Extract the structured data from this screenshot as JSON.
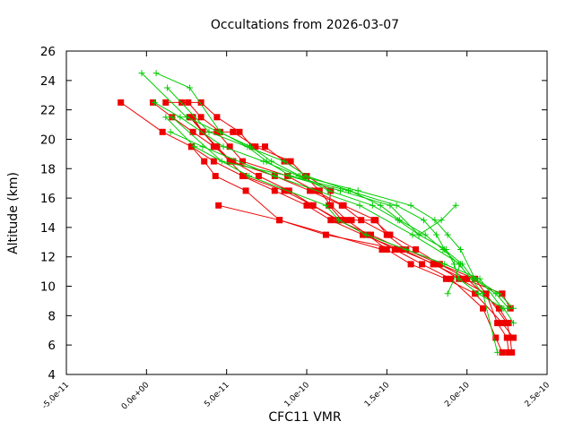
{
  "chart_data": {
    "type": "line",
    "title": "Occultations from 2026-03-07",
    "xlabel": "CFC11 VMR",
    "ylabel": "Altitude (km)",
    "xlim": [
      -5e-11,
      2.5e-10
    ],
    "ylim": [
      4,
      26
    ],
    "x_ticks": [
      -5e-11,
      0,
      5e-11,
      1e-10,
      1.5e-10,
      2e-10,
      2.5e-10
    ],
    "x_tick_labels": [
      "-5.0e-11",
      "0.0e+00",
      "5.0e-11",
      "1.0e-10",
      "1.5e-10",
      "2.0e-10",
      "2.5e-10"
    ],
    "y_ticks": [
      4,
      6,
      8,
      10,
      12,
      14,
      16,
      18,
      20,
      22,
      24,
      26
    ],
    "y_tick_labels": [
      "4",
      "6",
      "8",
      "10",
      "12",
      "14",
      "16",
      "18",
      "20",
      "22",
      "24",
      "26"
    ],
    "grid": false,
    "colors": {
      "red": "#ee0000",
      "green": "#00cc00"
    },
    "series": [
      {
        "name": "red-1",
        "color": "red",
        "marker": "square",
        "x": [
          2.26e-10,
          2.25e-10,
          2.19e-10,
          2.12e-10,
          1.95e-10,
          1.8e-10,
          1.58e-10,
          1.35e-10,
          1.15e-10,
          1e-10,
          8e-11,
          6e-11,
          4.2e-11,
          2.8e-11,
          1e-11,
          -1.6e-11
        ],
        "y": [
          5.5,
          6.5,
          7.5,
          9.5,
          10.5,
          11.5,
          12.5,
          13.5,
          14.5,
          15.5,
          16.5,
          17.5,
          18.5,
          19.5,
          20.5,
          22.5
        ]
      },
      {
        "name": "red-2",
        "color": "red",
        "marker": "square",
        "x": [
          2.22e-10,
          2.18e-10,
          2.1e-10,
          1.9e-10,
          1.72e-10,
          1.55e-10,
          1.37e-10,
          1.2e-10,
          1.04e-10,
          8.9e-11,
          7e-11,
          5.4e-11,
          4.2e-11,
          2.9e-11,
          1.6e-11,
          4e-12
        ],
        "y": [
          5.5,
          6.5,
          8.5,
          10.5,
          11.5,
          12.5,
          13.5,
          14.5,
          15.5,
          16.5,
          17.5,
          18.5,
          19.5,
          20.5,
          21.5,
          22.5
        ]
      },
      {
        "name": "red-3",
        "color": "red",
        "marker": "square",
        "x": [
          2.29e-10,
          2.22e-10,
          2.05e-10,
          1.87e-10,
          1.65e-10,
          1.5e-10,
          1.38e-10,
          1.25e-10,
          1.15e-10,
          1.08e-10,
          9.9e-11,
          9e-11,
          6.8e-11,
          5.4e-11,
          4.6e-11,
          3.4e-11,
          2.6e-11,
          1.2e-11
        ],
        "y": [
          6.5,
          7.5,
          9.5,
          10.5,
          11.5,
          12.5,
          13.5,
          14.5,
          15.5,
          16.5,
          17.5,
          18.5,
          19.5,
          20.5,
          20.5,
          21.5,
          22.5,
          22.5
        ]
      },
      {
        "name": "red-4",
        "color": "red",
        "marker": "square",
        "x": [
          2.28e-10,
          2.27e-10,
          2.25e-10,
          2.05e-10,
          1.83e-10,
          1.68e-10,
          1.52e-10,
          1.42e-10,
          1.28e-10,
          1.22e-10,
          1.14e-10,
          1.15e-10,
          1e-10,
          8.6e-11,
          7.4e-11,
          6.6e-11,
          5.8e-11,
          4.4e-11,
          3.4e-11,
          2.2e-11
        ],
        "y": [
          5.5,
          6.5,
          7.5,
          10.5,
          11.5,
          12.5,
          13.5,
          14.5,
          14.5,
          14.5,
          15.5,
          16.5,
          17.5,
          18.5,
          19.5,
          19.5,
          20.5,
          21.5,
          22.5,
          22.5
        ]
      },
      {
        "name": "red-5",
        "color": "red",
        "marker": "square",
        "x": [
          2.26e-10,
          2.2e-10,
          2e-10,
          1.83e-10,
          1.62e-10,
          1.5e-10,
          1.43e-10,
          1.23e-10,
          1.05e-10,
          8.8e-11,
          6e-11,
          5.2e-11,
          4.4e-11,
          3.5e-11,
          2.9e-11
        ],
        "y": [
          7.5,
          8.5,
          10.5,
          11.5,
          12.5,
          13.5,
          14.5,
          15.5,
          16.5,
          17.5,
          18.5,
          19.5,
          20.5,
          20.5,
          21.5
        ]
      },
      {
        "name": "red-6",
        "color": "red",
        "marker": "square",
        "x": [
          2.27e-10,
          2.22e-10,
          1.98e-10,
          1.79e-10,
          1.6e-10,
          1.4e-10,
          1.19e-10,
          1.04e-10,
          8.6e-11,
          6.1e-11,
          5.2e-11,
          4.3e-11,
          3.5e-11,
          2.8e-11
        ],
        "y": [
          8.5,
          9.5,
          10.5,
          11.5,
          12.5,
          13.5,
          14.5,
          15.5,
          16.5,
          17.5,
          18.5,
          19.5,
          20.5,
          21.5
        ]
      },
      {
        "name": "red-7",
        "color": "red",
        "marker": "square",
        "x": [
          1.51e-10,
          1.34e-10,
          1.22e-10,
          1.02e-10,
          8e-11,
          5.3e-11,
          4.4e-11,
          3.5e-11,
          2.7e-11
        ],
        "y": [
          13.5,
          14.5,
          15.5,
          16.5,
          17.5,
          18.5,
          19.5,
          20.5,
          21.5
        ]
      },
      {
        "name": "red-8",
        "color": "red",
        "marker": "square",
        "x": [
          1.58e-10,
          1.12e-10,
          8.3e-11,
          6.2e-11,
          4.3e-11,
          3.6e-11,
          2.8e-11
        ],
        "y": [
          12.5,
          13.5,
          14.5,
          16.5,
          17.5,
          18.5,
          19.5
        ]
      },
      {
        "name": "red-9",
        "color": "red",
        "marker": "square",
        "x": [
          1.47e-10,
          8.3e-11,
          4.5e-11
        ],
        "y": [
          12.5,
          14.5,
          15.5
        ]
      },
      {
        "name": "green-1",
        "color": "green",
        "marker": "plus",
        "x": [
          2.29e-10,
          2.2e-10,
          2.05e-10,
          1.96e-10,
          1.88e-10,
          1.8e-10,
          1.65e-10,
          1.32e-10,
          9.6e-11,
          7.8e-11,
          6.5e-11,
          2.5e-11,
          -3e-12
        ],
        "y": [
          8.5,
          9.5,
          10.5,
          12.5,
          13.5,
          14.5,
          15.5,
          16.5,
          17.5,
          18.5,
          19.5,
          21.5,
          24.5
        ]
      },
      {
        "name": "green-2",
        "color": "green",
        "marker": "plus",
        "x": [
          2.26e-10,
          2.18e-10,
          2.04e-10,
          1.97e-10,
          1.86e-10,
          1.81e-10,
          1.73e-10,
          1.56e-10,
          1.26e-10,
          9e-11,
          7.5e-11,
          6.3e-11,
          4.6e-11,
          2.7e-11,
          6e-12
        ],
        "y": [
          8.5,
          9.5,
          10.5,
          11.5,
          12.5,
          13.5,
          14.5,
          15.5,
          16.5,
          17.5,
          18.5,
          19.5,
          20.5,
          23.5,
          24.5
        ]
      },
      {
        "name": "green-3",
        "color": "green",
        "marker": "plus",
        "x": [
          2.19e-10,
          2.1e-10,
          1.95e-10,
          1.85e-10,
          1.74e-10,
          1.58e-10,
          1.46e-10,
          1.27e-10,
          1e-10,
          8.6e-11,
          3.9e-11,
          1.3e-11
        ],
        "y": [
          5.5,
          9.5,
          11.5,
          12.5,
          13.5,
          14.5,
          15.5,
          16.5,
          17.5,
          18.5,
          20.5,
          23.5
        ]
      },
      {
        "name": "green-4",
        "color": "green",
        "marker": "plus",
        "x": [
          2.29e-10,
          2.23e-10,
          2.07e-10,
          1.95e-10,
          1.92e-10,
          1.87e-10,
          1.7e-10,
          1.57e-10,
          1.41e-10,
          1.14e-10,
          9.5e-11,
          7.3e-11,
          4.8e-11,
          2.1e-11,
          5e-12
        ],
        "y": [
          7.5,
          8.5,
          9.5,
          10.5,
          11.5,
          12.5,
          13.5,
          14.5,
          15.5,
          16.5,
          17.5,
          18.5,
          19.5,
          21.5,
          22.5
        ]
      },
      {
        "name": "green-5",
        "color": "green",
        "marker": "plus",
        "x": [
          2.22e-10,
          2.08e-10,
          1.86e-10,
          1.62e-10,
          1.37e-10,
          1.2e-10,
          1.12e-10,
          6.4e-11,
          3e-11,
          1.2e-11
        ],
        "y": [
          8.5,
          10.5,
          11.5,
          12.5,
          13.5,
          14.5,
          15.5,
          17.5,
          19.5,
          21.5
        ]
      },
      {
        "name": "green-6",
        "color": "green",
        "marker": "plus",
        "x": [
          1.88e-10,
          1.96e-10,
          1.66e-10,
          1.33e-10,
          8e-11,
          3.5e-11,
          1.5e-11
        ],
        "y": [
          9.5,
          11.5,
          13.5,
          15.5,
          17.5,
          19.5,
          20.5
        ]
      },
      {
        "name": "green-7",
        "color": "green",
        "marker": "plus",
        "x": [
          1.93e-10,
          1.84e-10,
          1.7e-10,
          1.52e-10,
          1.21e-10,
          8.9e-11,
          4.7e-11,
          1.6e-11
        ],
        "y": [
          15.5,
          14.5,
          13.5,
          15.5,
          16.5,
          17.5,
          18.5,
          21.5
        ]
      }
    ]
  }
}
